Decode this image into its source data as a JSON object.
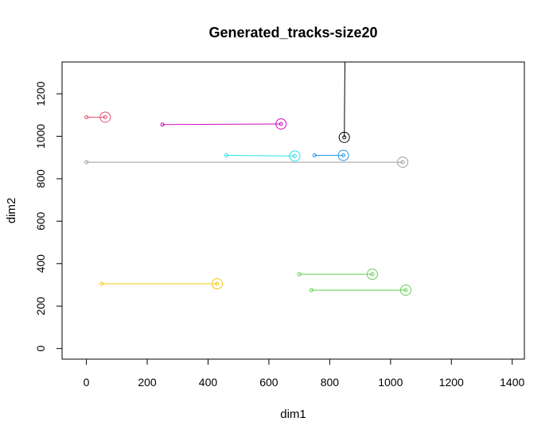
{
  "chart_data": {
    "type": "scatter",
    "title": "Generated_tracks-size20",
    "xlabel": "dim1",
    "ylabel": "dim2",
    "xlim": [
      -80,
      1440
    ],
    "ylim": [
      -50,
      1350
    ],
    "xticks": [
      0,
      200,
      400,
      600,
      800,
      1000,
      1200,
      1400
    ],
    "yticks": [
      0,
      200,
      400,
      600,
      800,
      1000,
      1200
    ],
    "grid": false,
    "legend": "none",
    "series": [
      {
        "color": "#DF536B",
        "x": [
          0,
          62
        ],
        "y": [
          1090,
          1090
        ],
        "end": [
          62,
          1090
        ]
      },
      {
        "color": "#CD0BBC",
        "x": [
          250,
          640
        ],
        "y": [
          1055,
          1058
        ],
        "end": [
          640,
          1058
        ]
      },
      {
        "color": "#28E2E5",
        "x": [
          460,
          685
        ],
        "y": [
          910,
          907
        ],
        "end": [
          685,
          907
        ]
      },
      {
        "color": "#2297E6",
        "x": [
          750,
          845
        ],
        "y": [
          910,
          910
        ],
        "end": [
          845,
          910
        ]
      },
      {
        "color": "#9E9E9E",
        "x": [
          0,
          1040
        ],
        "y": [
          878,
          878
        ],
        "end": [
          1040,
          878
        ]
      },
      {
        "color": "#000000",
        "x": [
          850,
          848
        ],
        "y": [
          1360,
          995
        ],
        "end": [
          848,
          995
        ]
      },
      {
        "color": "#F5C710",
        "x": [
          50,
          430
        ],
        "y": [
          305,
          305
        ],
        "end": [
          430,
          305
        ]
      },
      {
        "color": "#61D04F",
        "x": [
          700,
          940
        ],
        "y": [
          350,
          350
        ],
        "end": [
          940,
          350
        ]
      },
      {
        "color": "#61D04F",
        "x": [
          740,
          1050
        ],
        "y": [
          275,
          275
        ],
        "end": [
          1050,
          275
        ]
      }
    ]
  }
}
